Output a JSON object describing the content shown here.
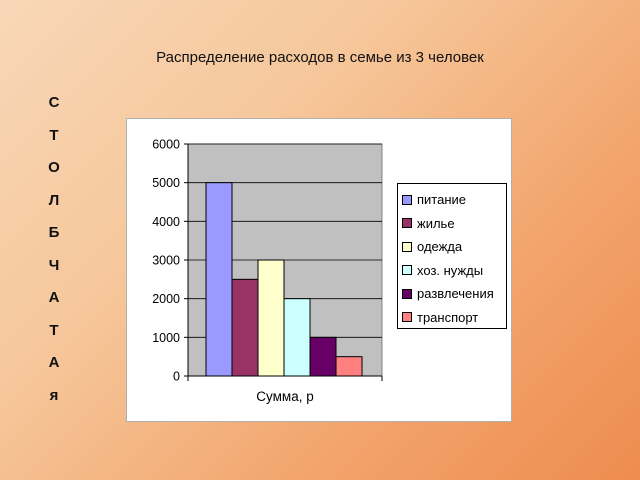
{
  "slide": {
    "title": "Распределение расходов в семье из 3 человек",
    "vertical_word": [
      "С",
      "Т",
      "О",
      "Л",
      "Б",
      "Ч",
      "А",
      "Т",
      "А",
      "я"
    ]
  },
  "chart_data": {
    "type": "bar",
    "title": "",
    "categories": [
      "Сумма, р"
    ],
    "xlabel": "",
    "ylabel": "",
    "ylim": [
      0,
      6000
    ],
    "yticks": [
      0,
      1000,
      2000,
      3000,
      4000,
      5000,
      6000
    ],
    "grid": true,
    "legend_position": "right",
    "series": [
      {
        "name": "питание",
        "values": [
          5000
        ],
        "color": "#9999ff"
      },
      {
        "name": "жилье",
        "values": [
          2500
        ],
        "color": "#993366"
      },
      {
        "name": "одежда",
        "values": [
          3000
        ],
        "color": "#ffffcc"
      },
      {
        "name": "хоз. нужды",
        "values": [
          2000
        ],
        "color": "#ccffff"
      },
      {
        "name": "развлечения",
        "values": [
          1000
        ],
        "color": "#660066"
      },
      {
        "name": "транспорт",
        "values": [
          500
        ],
        "color": "#ff8080"
      }
    ],
    "plot_background": "#c0c0c0"
  }
}
